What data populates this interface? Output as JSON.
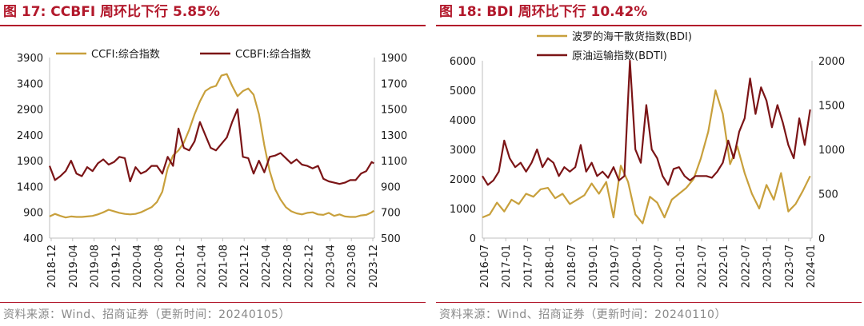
{
  "left": {
    "title": "图 17:  CCBFI 周环比下行 5.85%",
    "source": "资料来源：Wind、招商证券（更新时间：20240105）",
    "colors": {
      "ccfi": "#c8a03c",
      "ccbfi": "#7b1416"
    },
    "chart_data": {
      "type": "line",
      "legend_placement": "top",
      "grid": false,
      "x_ticks": [
        "2018-12",
        "2019-04",
        "2019-08",
        "2019-12",
        "2020-04",
        "2020-08",
        "2020-12",
        "2021-04",
        "2021-08",
        "2021-12",
        "2022-04",
        "2022-08",
        "2022-12",
        "2023-04",
        "2023-08",
        "2023-12"
      ],
      "x_range": [
        0,
        60.5
      ],
      "y_left": {
        "ticks": [
          400,
          900,
          1400,
          1900,
          2400,
          2900,
          3400,
          3900
        ],
        "range": [
          400,
          3900
        ]
      },
      "y_right": {
        "ticks": [
          500,
          700,
          900,
          1100,
          1300,
          1500,
          1700,
          1900
        ],
        "range": [
          500,
          1900
        ]
      },
      "series": [
        {
          "name": "CCFI:综合指数",
          "axis": "left",
          "x": [
            0,
            1,
            2,
            3,
            4,
            5,
            6,
            7,
            8,
            9,
            10,
            11,
            12,
            13,
            14,
            15,
            16,
            17,
            18,
            19,
            20,
            21,
            22,
            23,
            24,
            25,
            26,
            27,
            28,
            29,
            30,
            31,
            32,
            33,
            34,
            35,
            36,
            37,
            38,
            39,
            40,
            41,
            42,
            43,
            44,
            45,
            46,
            47,
            48,
            49,
            50,
            51,
            52,
            53,
            54,
            55,
            56,
            57,
            58,
            59,
            60,
            60.4
          ],
          "y": [
            820,
            870,
            830,
            800,
            820,
            810,
            810,
            820,
            830,
            860,
            900,
            950,
            920,
            890,
            870,
            860,
            870,
            900,
            950,
            1000,
            1100,
            1300,
            1750,
            2000,
            2100,
            2250,
            2500,
            2800,
            3050,
            3250,
            3320,
            3350,
            3550,
            3580,
            3350,
            3150,
            3250,
            3300,
            3180,
            2800,
            2200,
            1700,
            1350,
            1150,
            1000,
            920,
            880,
            860,
            890,
            900,
            860,
            850,
            890,
            830,
            860,
            820,
            810,
            810,
            840,
            850,
            900,
            930
          ]
        },
        {
          "name": "CCBFI:综合指数",
          "axis": "right",
          "x": [
            0,
            1,
            2,
            3,
            4,
            5,
            6,
            7,
            8,
            9,
            10,
            11,
            12,
            13,
            14,
            15,
            16,
            17,
            18,
            19,
            20,
            21,
            22,
            23,
            24,
            25,
            26,
            27,
            28,
            29,
            30,
            31,
            32,
            33,
            34,
            35,
            36,
            37,
            38,
            39,
            40,
            41,
            42,
            43,
            44,
            45,
            46,
            47,
            48,
            49,
            50,
            51,
            52,
            53,
            54,
            55,
            56,
            57,
            58,
            59,
            60,
            60.4
          ],
          "y": [
            1060,
            950,
            980,
            1020,
            1100,
            1000,
            980,
            1050,
            1020,
            1080,
            1110,
            1070,
            1090,
            1130,
            1120,
            940,
            1050,
            1000,
            1020,
            1060,
            1060,
            1000,
            1130,
            1060,
            1350,
            1200,
            1180,
            1250,
            1400,
            1300,
            1200,
            1180,
            1230,
            1280,
            1400,
            1500,
            1130,
            1120,
            1000,
            1100,
            1010,
            1130,
            1140,
            1160,
            1120,
            1080,
            1110,
            1070,
            1060,
            1040,
            1060,
            960,
            940,
            930,
            920,
            930,
            950,
            950,
            1000,
            1020,
            1090,
            1080
          ]
        }
      ]
    }
  },
  "right": {
    "title": "图 18:  BDI 周环比下行 10.42%",
    "source": "资料来源：Wind、招商证券（更新时间：20240110）",
    "colors": {
      "bdi": "#c8a03c",
      "bdti": "#7b1416"
    },
    "chart_data": {
      "type": "line",
      "legend_placement": "top",
      "grid": false,
      "x_ticks": [
        "2016-07",
        "2017-01",
        "2017-07",
        "2018-01",
        "2018-07",
        "2019-01",
        "2019-07",
        "2020-01",
        "2020-07",
        "2021-01",
        "2021-07",
        "2022-01",
        "2022-07",
        "2023-01",
        "2023-07",
        "2024-01"
      ],
      "x_range": [
        0,
        90.5
      ],
      "y_left": {
        "ticks": [
          0,
          1000,
          2000,
          3000,
          4000,
          5000,
          6000
        ],
        "range": [
          0,
          6000
        ]
      },
      "y_right": {
        "ticks": [
          0,
          500,
          1000,
          1500,
          2000
        ],
        "range": [
          0,
          2000
        ]
      },
      "series": [
        {
          "name": "波罗的海干散货指数(BDI)",
          "axis": "left",
          "x": [
            0,
            2,
            4,
            6,
            8,
            10,
            12,
            14,
            16,
            18,
            20,
            22,
            24,
            26,
            28,
            30,
            32,
            34,
            36,
            38,
            40,
            42,
            44,
            46,
            48,
            50,
            52,
            54,
            56,
            58,
            60,
            62,
            64,
            66,
            68,
            70,
            72,
            74,
            76,
            78,
            80,
            82,
            84,
            86,
            88,
            90
          ],
          "y": [
            700,
            800,
            1200,
            900,
            1300,
            1150,
            1500,
            1400,
            1650,
            1700,
            1350,
            1500,
            1150,
            1300,
            1450,
            1850,
            1500,
            1900,
            700,
            2450,
            1900,
            800,
            500,
            1400,
            1200,
            700,
            1300,
            1500,
            1700,
            2000,
            2700,
            3600,
            5000,
            4200,
            2500,
            3100,
            2200,
            1500,
            1000,
            1800,
            1300,
            2200,
            900,
            1150,
            1600,
            2100
          ]
        },
        {
          "name": "原油运输指数(BDTI)",
          "axis": "right",
          "x": [
            0,
            1.5,
            3,
            4.5,
            6,
            7.5,
            9,
            10.5,
            12,
            13.5,
            15,
            16.5,
            18,
            19.5,
            21,
            22.5,
            24,
            25.5,
            27,
            28.5,
            30,
            31.5,
            33,
            34.5,
            36,
            37.5,
            39,
            40.5,
            42,
            43.5,
            45,
            46.5,
            48,
            49.5,
            51,
            52.5,
            54,
            55.5,
            57,
            58.5,
            60,
            61.5,
            63,
            64.5,
            66,
            67.5,
            69,
            70.5,
            72,
            73.5,
            75,
            76.5,
            78,
            79.5,
            81,
            82.5,
            84,
            85.5,
            87,
            88.5,
            90
          ],
          "y": [
            700,
            600,
            650,
            750,
            1100,
            900,
            800,
            850,
            750,
            850,
            1000,
            800,
            900,
            850,
            700,
            800,
            750,
            800,
            1050,
            750,
            850,
            700,
            750,
            680,
            800,
            650,
            700,
            2000,
            1000,
            850,
            1500,
            1000,
            900,
            700,
            600,
            780,
            800,
            700,
            650,
            700,
            700,
            700,
            680,
            750,
            850,
            1100,
            900,
            1200,
            1350,
            1800,
            1400,
            1700,
            1550,
            1250,
            1500,
            1300,
            1050,
            900,
            1350,
            1050,
            1450
          ]
        }
      ]
    }
  }
}
